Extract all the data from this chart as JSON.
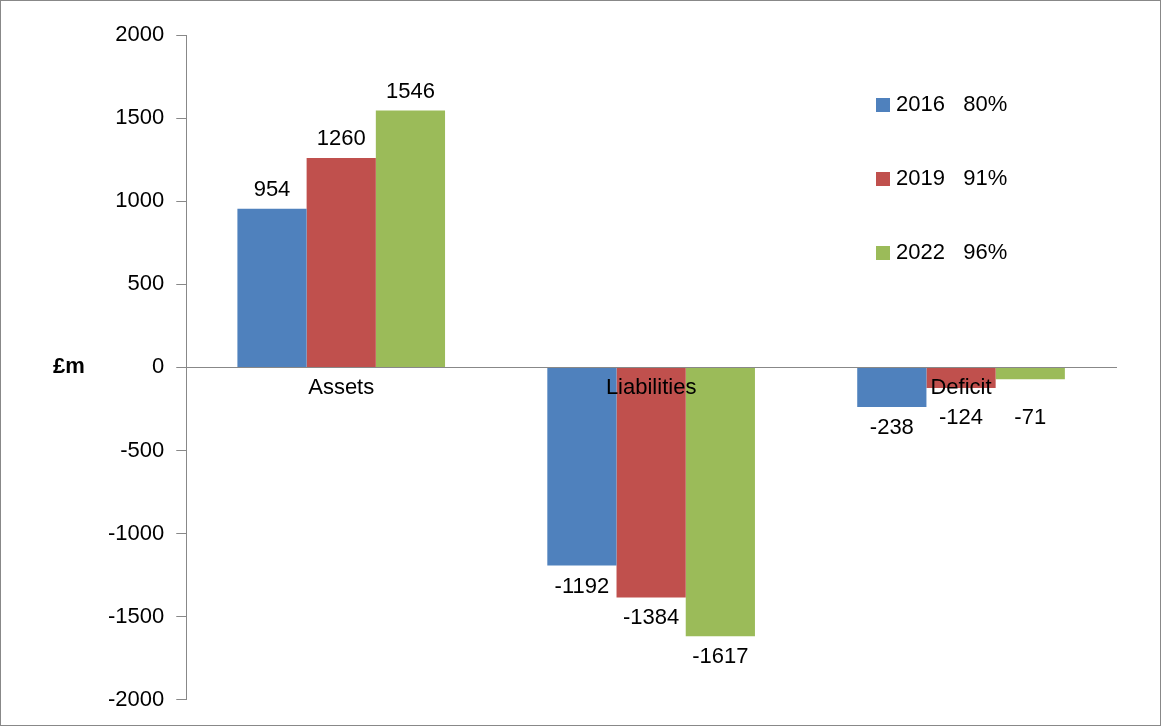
{
  "chart_data": {
    "type": "bar",
    "ylabel": "£m",
    "categories": [
      "Assets",
      "Liabilities",
      "Deficit"
    ],
    "series": [
      {
        "name": "2016   80%",
        "color": "#4f81bd",
        "values": [
          954,
          -1192,
          -238
        ]
      },
      {
        "name": "2019   91%",
        "color": "#c0504d",
        "values": [
          1260,
          -1384,
          -124
        ]
      },
      {
        "name": "2022   96%",
        "color": "#9bbb59",
        "values": [
          1546,
          -1617,
          -71
        ]
      }
    ],
    "ylim": [
      -2000,
      2000
    ],
    "yticks": [
      -2000,
      -1500,
      -1000,
      -500,
      0,
      500,
      1000,
      1500,
      2000
    ],
    "grid": false,
    "legend": "top right",
    "data_labels": true
  }
}
